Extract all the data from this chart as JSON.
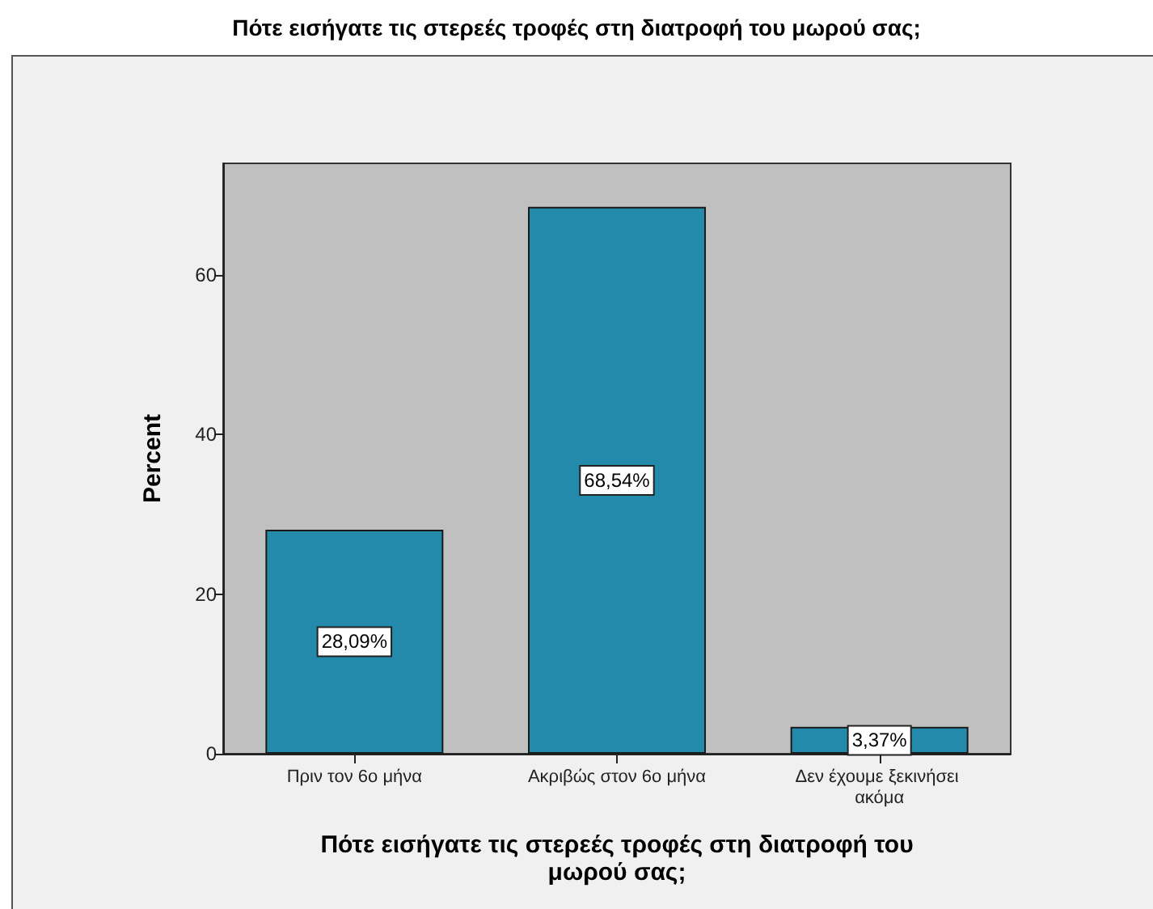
{
  "chart_data": {
    "type": "bar",
    "xlabel": "Πότε εισήγατε τις στερεές τροφές στη διατροφή του μωρού σας;",
    "title": "Πότε εισήγατε τις στερεές τροφές στη διατροφή του μωρού σας;",
    "ylabel": "Percent",
    "categories": [
      "Πριν τον 6ο μήνα",
      "Ακριβώς στον 6ο μήνα",
      "Δεν έχουμε ξεκινήσει ακόμα"
    ],
    "values": [
      28.09,
      68.54,
      3.37
    ],
    "value_labels": [
      "28,09%",
      "68,54%",
      "3,37%"
    ],
    "color": "#238aab",
    "ylim": [
      0,
      74
    ],
    "yticks": [
      0,
      20,
      40,
      60
    ]
  }
}
